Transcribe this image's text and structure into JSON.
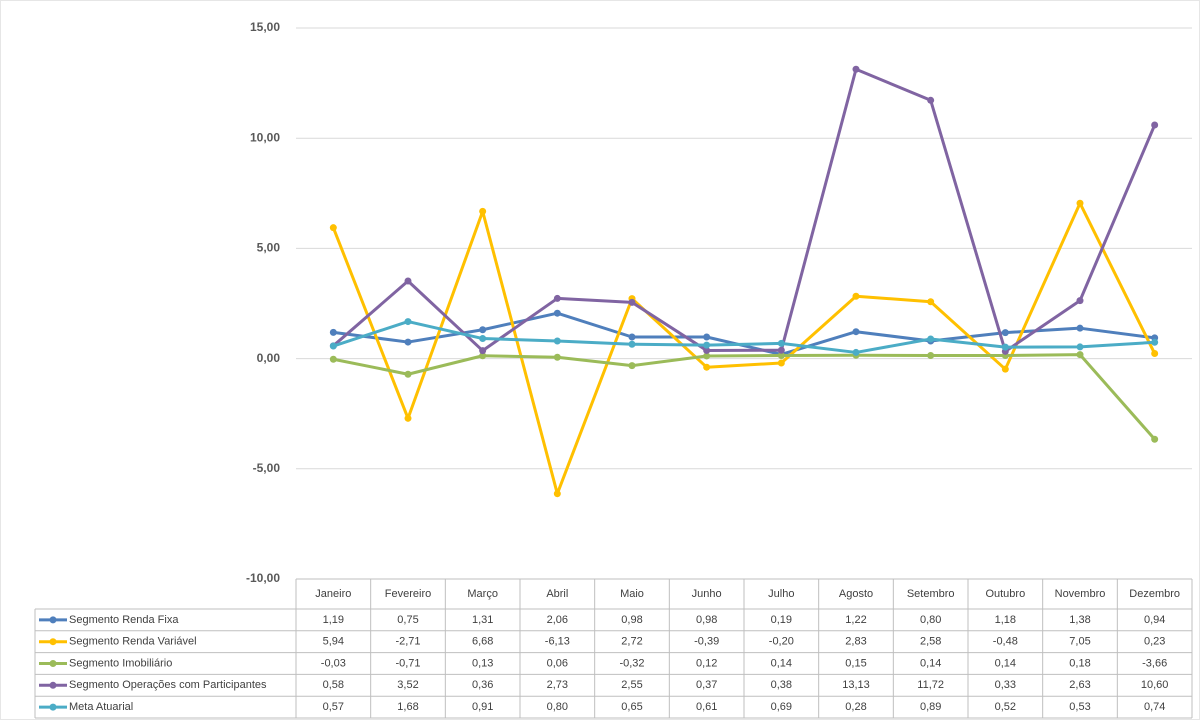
{
  "chart_data": {
    "type": "line",
    "categories": [
      "Janeiro",
      "Fevereiro",
      "Março",
      "Abril",
      "Maio",
      "Junho",
      "Julho",
      "Agosto",
      "Setembro",
      "Outubro",
      "Novembro",
      "Dezembro"
    ],
    "ylim": [
      -10,
      15
    ],
    "yticks": [
      {
        "value": -10,
        "label": "-10,00"
      },
      {
        "value": -5,
        "label": "-5,00"
      },
      {
        "value": 0,
        "label": "0,00"
      },
      {
        "value": 5,
        "label": "5,00"
      },
      {
        "value": 10,
        "label": "10,00"
      },
      {
        "value": 15,
        "label": "15,00"
      }
    ],
    "grid": true,
    "series": [
      {
        "name": "Segmento Renda Fixa",
        "color": "#4f7fbc",
        "values": [
          1.19,
          0.75,
          1.31,
          2.06,
          0.98,
          0.98,
          0.19,
          1.22,
          0.8,
          1.18,
          1.38,
          0.94
        ],
        "value_labels": [
          "1,19",
          "0,75",
          "1,31",
          "2,06",
          "0,98",
          "0,98",
          "0,19",
          "1,22",
          "0,80",
          "1,18",
          "1,38",
          "0,94"
        ]
      },
      {
        "name": "Segmento Renda Variável",
        "color": "#ffc000",
        "values": [
          5.94,
          -2.71,
          6.68,
          -6.13,
          2.72,
          -0.39,
          -0.2,
          2.83,
          2.58,
          -0.48,
          7.05,
          0.23
        ],
        "value_labels": [
          "5,94",
          "-2,71",
          "6,68",
          "-6,13",
          "2,72",
          "-0,39",
          "-0,20",
          "2,83",
          "2,58",
          "-0,48",
          "7,05",
          "0,23"
        ]
      },
      {
        "name": "Segmento Imobiliário",
        "color": "#9bbb59",
        "values": [
          -0.03,
          -0.71,
          0.13,
          0.06,
          -0.32,
          0.12,
          0.14,
          0.15,
          0.14,
          0.14,
          0.18,
          -3.66
        ],
        "value_labels": [
          "-0,03",
          "-0,71",
          "0,13",
          "0,06",
          "-0,32",
          "0,12",
          "0,14",
          "0,15",
          "0,14",
          "0,14",
          "0,18",
          "-3,66"
        ]
      },
      {
        "name": "Segmento Operações com Participantes",
        "color": "#8064a2",
        "values": [
          0.58,
          3.52,
          0.36,
          2.73,
          2.55,
          0.37,
          0.38,
          13.13,
          11.72,
          0.33,
          2.63,
          10.6
        ],
        "value_labels": [
          "0,58",
          "3,52",
          "0,36",
          "2,73",
          "2,55",
          "0,37",
          "0,38",
          "13,13",
          "11,72",
          "0,33",
          "2,63",
          "10,60"
        ]
      },
      {
        "name": "Meta Atuarial",
        "color": "#4bacc6",
        "values": [
          0.57,
          1.68,
          0.91,
          0.8,
          0.65,
          0.61,
          0.69,
          0.28,
          0.89,
          0.52,
          0.53,
          0.74
        ],
        "value_labels": [
          "0,57",
          "1,68",
          "0,91",
          "0,80",
          "0,65",
          "0,61",
          "0,69",
          "0,28",
          "0,89",
          "0,52",
          "0,53",
          "0,74"
        ]
      }
    ]
  }
}
